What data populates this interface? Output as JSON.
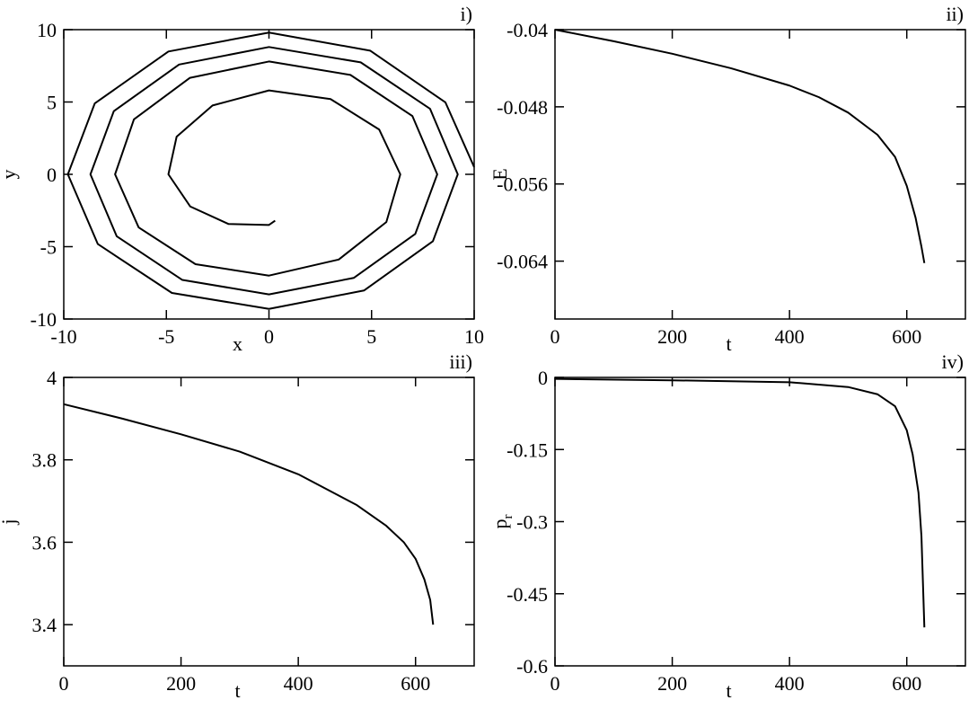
{
  "chart_data": [
    {
      "type": "line",
      "panel_label": "i)",
      "xlabel": "x",
      "ylabel": "y",
      "color": "#000000",
      "xlim": [
        -10,
        10
      ],
      "ylim": [
        -10,
        10
      ],
      "xticks": [
        -10,
        -5,
        0,
        5,
        10
      ],
      "yticks": [
        -10,
        -5,
        0,
        5,
        10
      ],
      "x": [
        10,
        8.6,
        4.93,
        0,
        -4.9,
        -8.49,
        -9.8,
        -8.34,
        -4.73,
        0,
        4.63,
        7.99,
        9.2,
        7.85,
        4.47,
        0,
        -4.38,
        -7.56,
        -8.7,
        -7.42,
        -4.22,
        0,
        4.13,
        7.13,
        8.2,
        6.99,
        3.97,
        0,
        -3.85,
        -6.58,
        -7.5,
        -6.35,
        -3.58,
        0,
        3.4,
        5.72,
        6.4,
        5.37,
        3.0,
        0,
        -2.75,
        -4.5,
        -4.9,
        -3.84,
        -1.98,
        0,
        0.3
      ],
      "values": [
        0.5,
        4.97,
        8.55,
        9.8,
        8.49,
        4.9,
        0,
        -4.82,
        -8.2,
        -9.3,
        -8.03,
        -4.62,
        0,
        4.53,
        7.74,
        8.8,
        7.59,
        4.37,
        0,
        -4.28,
        -7.3,
        -8.3,
        -7.16,
        -4.12,
        0,
        4.03,
        6.87,
        7.8,
        6.67,
        3.8,
        0,
        -3.67,
        -6.21,
        -7.0,
        -5.89,
        -3.3,
        0,
        3.1,
        5.2,
        5.8,
        4.76,
        2.6,
        0,
        -2.22,
        -3.43,
        -3.5,
        -3.2
      ]
    },
    {
      "type": "line",
      "panel_label": "ii)",
      "xlabel": "t",
      "ylabel": "E",
      "color": "#000000",
      "xlim": [
        0,
        700
      ],
      "ylim": [
        -0.07,
        -0.04
      ],
      "xticks": [
        0,
        200,
        400,
        600
      ],
      "yticks": [
        -0.04,
        -0.048,
        -0.056,
        -0.064
      ],
      "x": [
        0,
        100,
        200,
        300,
        400,
        450,
        500,
        550,
        580,
        600,
        615,
        625,
        630
      ],
      "values": [
        -0.04,
        -0.0412,
        -0.0425,
        -0.044,
        -0.0458,
        -0.047,
        -0.0486,
        -0.0509,
        -0.0532,
        -0.0562,
        -0.0595,
        -0.0625,
        -0.0642
      ]
    },
    {
      "type": "line",
      "panel_label": "iii)",
      "xlabel": "t",
      "ylabel": "j",
      "color": "#000000",
      "xlim": [
        0,
        700
      ],
      "ylim": [
        3.3,
        4
      ],
      "xticks": [
        0,
        200,
        400,
        600
      ],
      "yticks": [
        {
          "value": 4,
          "label": "4"
        },
        3.8,
        3.6,
        3.4
      ],
      "x": [
        0,
        100,
        200,
        300,
        400,
        500,
        550,
        580,
        600,
        615,
        625,
        630
      ],
      "values": [
        3.935,
        3.9,
        3.862,
        3.82,
        3.765,
        3.69,
        3.64,
        3.6,
        3.56,
        3.51,
        3.46,
        3.4
      ]
    },
    {
      "type": "line",
      "panel_label": "iv)",
      "xlabel": "t",
      "ylabel": "p",
      "ylabel_subscript": "r",
      "color": "#000000",
      "xlim": [
        0,
        700
      ],
      "ylim": [
        -0.6,
        0
      ],
      "xticks": [
        0,
        200,
        400,
        600
      ],
      "yticks": [
        0,
        -0.15,
        -0.3,
        -0.45,
        -0.6
      ],
      "x": [
        0,
        200,
        400,
        500,
        550,
        580,
        600,
        610,
        620,
        625,
        630
      ],
      "values": [
        -0.003,
        -0.006,
        -0.01,
        -0.02,
        -0.035,
        -0.06,
        -0.11,
        -0.16,
        -0.24,
        -0.33,
        -0.52
      ]
    }
  ]
}
